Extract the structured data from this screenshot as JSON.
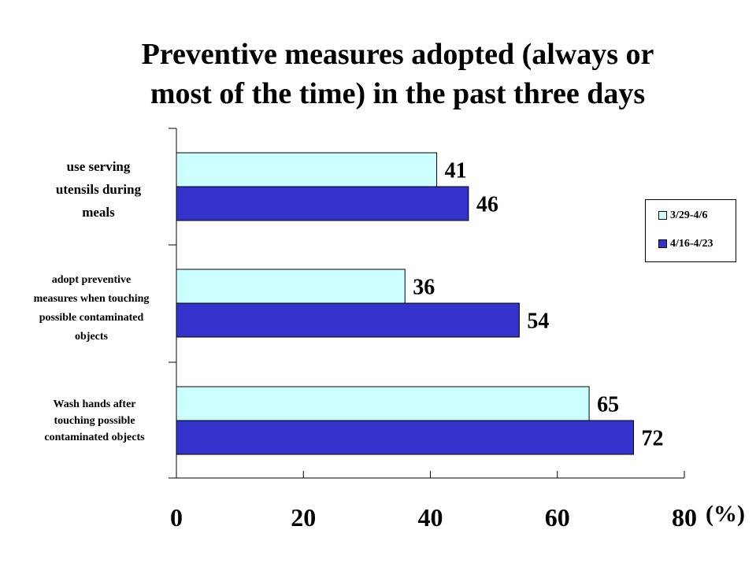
{
  "title": {
    "line1": "Preventive measures adopted (always or",
    "line2": "most of the time) in the past three days"
  },
  "unit_label": "(%)",
  "legend": [
    {
      "label": "3/29-4/6",
      "color": "#ccffff"
    },
    {
      "label": "4/16-4/23",
      "color": "#3333cc"
    }
  ],
  "chart_data": {
    "type": "bar",
    "orientation": "horizontal",
    "title": "Preventive measures adopted (always or most of the time) in the past three days",
    "categories": [
      "use serving utensils during meals",
      "adopt preventive measures when touching possible contaminated objects",
      "Wash hands after touching possible contaminated objects"
    ],
    "category_lines": [
      [
        "use serving",
        "utensils during",
        "meals"
      ],
      [
        "adopt preventive",
        "measures when touching",
        "possible contaminated",
        "objects"
      ],
      [
        "Wash hands after",
        "touching possible",
        "contaminated objects"
      ]
    ],
    "series": [
      {
        "name": "3/29-4/6",
        "values": [
          41,
          36,
          65
        ],
        "color": "#ccffff"
      },
      {
        "name": "4/16-4/23",
        "values": [
          46,
          54,
          72
        ],
        "color": "#3333cc"
      }
    ],
    "xlim": [
      0,
      80
    ],
    "xticks": [
      0,
      20,
      40,
      60,
      80
    ],
    "xlabel": "(%)",
    "legend_position": "right",
    "grid": false
  }
}
